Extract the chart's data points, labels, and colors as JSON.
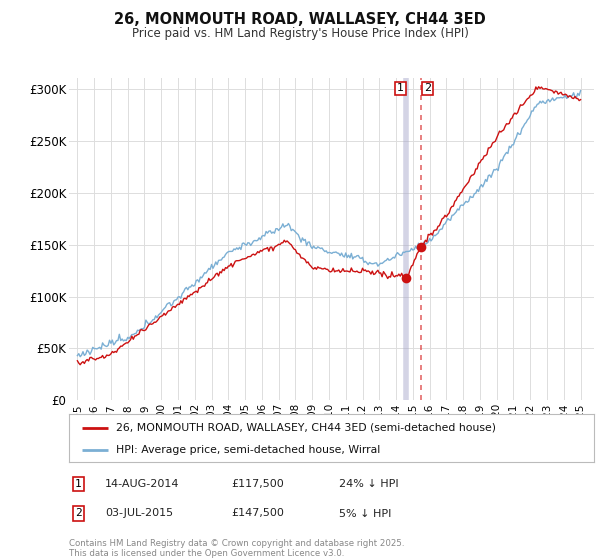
{
  "title": "26, MONMOUTH ROAD, WALLASEY, CH44 3ED",
  "subtitle": "Price paid vs. HM Land Registry's House Price Index (HPI)",
  "ylim": [
    0,
    310000
  ],
  "yticks": [
    0,
    50000,
    100000,
    150000,
    200000,
    250000,
    300000
  ],
  "ytick_labels": [
    "£0",
    "£50K",
    "£100K",
    "£150K",
    "£200K",
    "£250K",
    "£300K"
  ],
  "hpi_color": "#7bafd4",
  "price_color": "#cc1111",
  "sale1_date_label": "14-AUG-2014",
  "sale1_price": 117500,
  "sale1_price_label": "£117,500",
  "sale1_hpi_label": "24% ↓ HPI",
  "sale2_date_label": "03-JUL-2015",
  "sale2_price": 147500,
  "sale2_price_label": "£147,500",
  "sale2_hpi_label": "5% ↓ HPI",
  "legend_line1": "26, MONMOUTH ROAD, WALLASEY, CH44 3ED (semi-detached house)",
  "legend_line2": "HPI: Average price, semi-detached house, Wirral",
  "footer": "Contains HM Land Registry data © Crown copyright and database right 2025.\nThis data is licensed under the Open Government Licence v3.0.",
  "sale1_x": 2014.617,
  "sale2_x": 2015.5,
  "vline1_color": "#aaaacc",
  "vline2_color": "#dd4444"
}
